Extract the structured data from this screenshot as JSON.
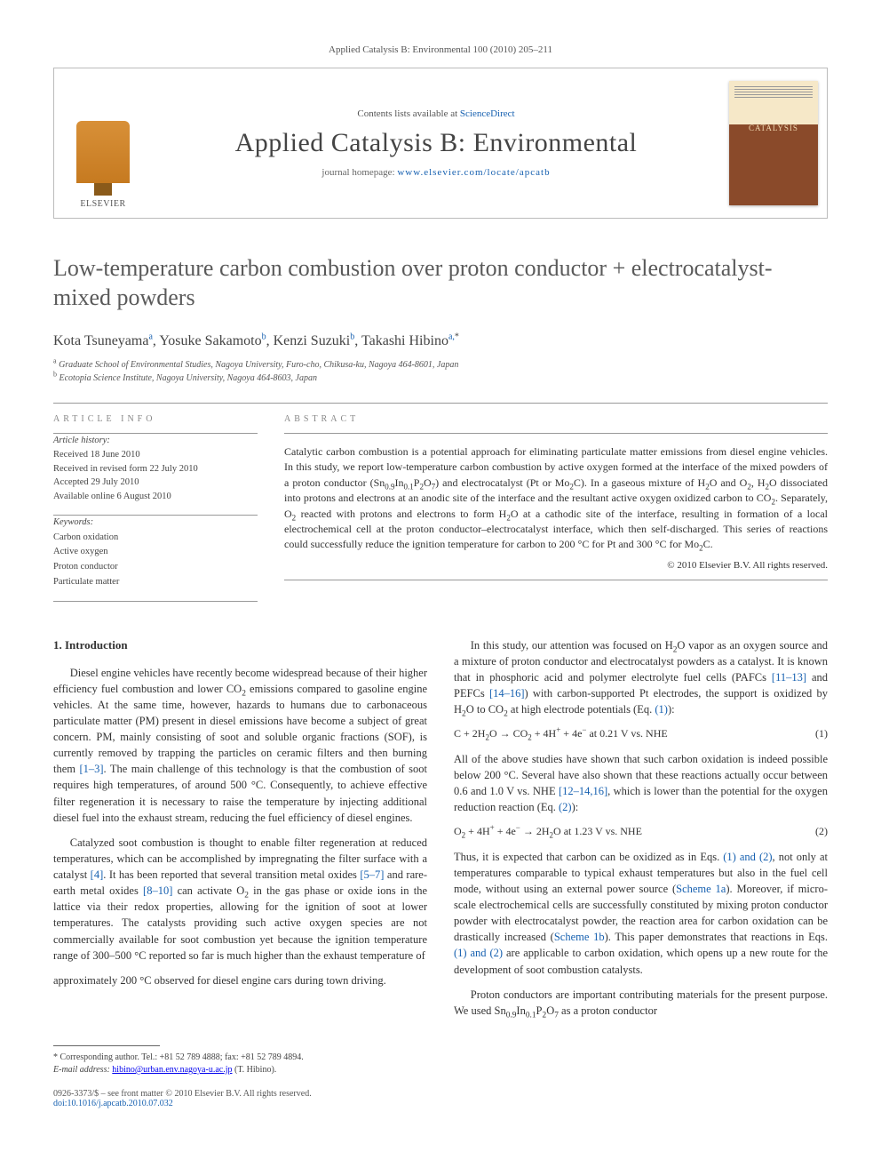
{
  "topline": "Applied Catalysis B: Environmental 100 (2010) 205–211",
  "header": {
    "publisher_label": "ELSEVIER",
    "contents_prefix": "Contents lists available at ",
    "contents_link": "ScienceDirect",
    "journal_name": "Applied Catalysis B: Environmental",
    "homepage_prefix": "journal homepage: ",
    "homepage_url": "www.elsevier.com/locate/apcatb"
  },
  "title": "Low-temperature carbon combustion over proton conductor + electrocatalyst-mixed powders",
  "authors_html": "Kota Tsuneyama<sup>a</sup>, Yosuke Sakamoto<sup>b</sup>, Kenzi Suzuki<sup>b</sup>, Takashi Hibino<sup>a,</sup><sup class='star'>*</sup>",
  "affiliations": {
    "a": "Graduate School of Environmental Studies, Nagoya University, Furo-cho, Chikusa-ku, Nagoya 464-8601, Japan",
    "b": "Ecotopia Science Institute, Nagoya University, Nagoya 464-8603, Japan"
  },
  "article_info": {
    "heading": "ARTICLE INFO",
    "history_label": "Article history:",
    "received": "Received 18 June 2010",
    "revised": "Received in revised form 22 July 2010",
    "accepted": "Accepted 29 July 2010",
    "online": "Available online 6 August 2010",
    "keywords_label": "Keywords:",
    "keywords": [
      "Carbon oxidation",
      "Active oxygen",
      "Proton conductor",
      "Particulate matter"
    ]
  },
  "abstract": {
    "heading": "ABSTRACT",
    "text": "Catalytic carbon combustion is a potential approach for eliminating particulate matter emissions from diesel engine vehicles. In this study, we report low-temperature carbon combustion by active oxygen formed at the interface of the mixed powders of a proton conductor (Sn0.9In0.1P2O7) and electrocatalyst (Pt or Mo2C). In a gaseous mixture of H2O and O2, H2O dissociated into protons and electrons at an anodic site of the interface and the resultant active oxygen oxidized carbon to CO2. Separately, O2 reacted with protons and electrons to form H2O at a cathodic site of the interface, resulting in formation of a local electrochemical cell at the proton conductor–electrocatalyst interface, which then self-discharged. This series of reactions could successfully reduce the ignition temperature for carbon to 200 °C for Pt and 300 °C for Mo2C.",
    "copyright": "© 2010 Elsevier B.V. All rights reserved."
  },
  "body": {
    "sec1_heading": "1.  Introduction",
    "p1": "Diesel engine vehicles have recently become widespread because of their higher efficiency fuel combustion and lower CO2 emissions compared to gasoline engine vehicles. At the same time, however, hazards to humans due to carbonaceous particulate matter (PM) present in diesel emissions have become a subject of great concern. PM, mainly consisting of soot and soluble organic fractions (SOF), is currently removed by trapping the particles on ceramic filters and then burning them [1–3]. The main challenge of this technology is that the combustion of soot requires high temperatures, of around 500 °C. Consequently, to achieve effective filter regeneration it is necessary to raise the temperature by injecting additional diesel fuel into the exhaust stream, reducing the fuel efficiency of diesel engines.",
    "p2": "Catalyzed soot combustion is thought to enable filter regeneration at reduced temperatures, which can be accomplished by impregnating the filter surface with a catalyst [4]. It has been reported that several transition metal oxides [5–7] and rare-earth metal oxides [8–10] can activate O2 in the gas phase or oxide ions in the lattice via their redox properties, allowing for the ignition of soot at lower temperatures. The catalysts providing such active oxygen species are not commercially available for soot combustion yet because the ignition temperature range of 300–500 °C reported so far is much higher than the exhaust temperature of",
    "p3": "approximately 200 °C observed for diesel engine cars during town driving.",
    "p4": "In this study, our attention was focused on H2O vapor as an oxygen source and a mixture of proton conductor and electrocatalyst powders as a catalyst. It is known that in phosphoric acid and polymer electrolyte fuel cells (PAFCs [11–13] and PEFCs [14–16]) with carbon-supported Pt electrodes, the support is oxidized by H2O to CO2 at high electrode potentials (Eq. (1)):",
    "eq1": "C + 2H2O → CO2 + 4H+ + 4e−   at 0.21 V vs. NHE",
    "eq1_num": "(1)",
    "p5": "All of the above studies have shown that such carbon oxidation is indeed possible below 200 °C. Several have also shown that these reactions actually occur between 0.6 and 1.0 V vs. NHE [12–14,16], which is lower than the potential for the oxygen reduction reaction (Eq. (2)):",
    "eq2": "O2 + 4H+ + 4e− → 2H2O   at 1.23 V vs. NHE",
    "eq2_num": "(2)",
    "p6": "Thus, it is expected that carbon can be oxidized as in Eqs. (1) and (2), not only at temperatures comparable to typical exhaust temperatures but also in the fuel cell mode, without using an external power source (Scheme 1a). Moreover, if micro-scale electrochemical cells are successfully constituted by mixing proton conductor powder with electrocatalyst powder, the reaction area for carbon oxidation can be drastically increased (Scheme 1b). This paper demonstrates that reactions in Eqs. (1) and (2) are applicable to carbon oxidation, which opens up a new route for the development of soot combustion catalysts.",
    "p7": "Proton conductors are important contributing materials for the present purpose. We used Sn0.9In0.1P2O7 as a proton conductor"
  },
  "footnotes": {
    "corr": "* Corresponding author. Tel.: +81 52 789 4888; fax: +81 52 789 4894.",
    "email_label": "E-mail address: ",
    "email": "hibino@urban.env.nagoya-u.ac.jp",
    "email_suffix": " (T. Hibino)."
  },
  "footer": {
    "left": "0926-3373/$ – see front matter © 2010 Elsevier B.V. All rights reserved.",
    "doi": "doi:10.1016/j.apcatb.2010.07.032"
  },
  "colors": {
    "link": "#1660b0",
    "text": "#333333",
    "muted": "#555555",
    "rule": "#999999"
  }
}
